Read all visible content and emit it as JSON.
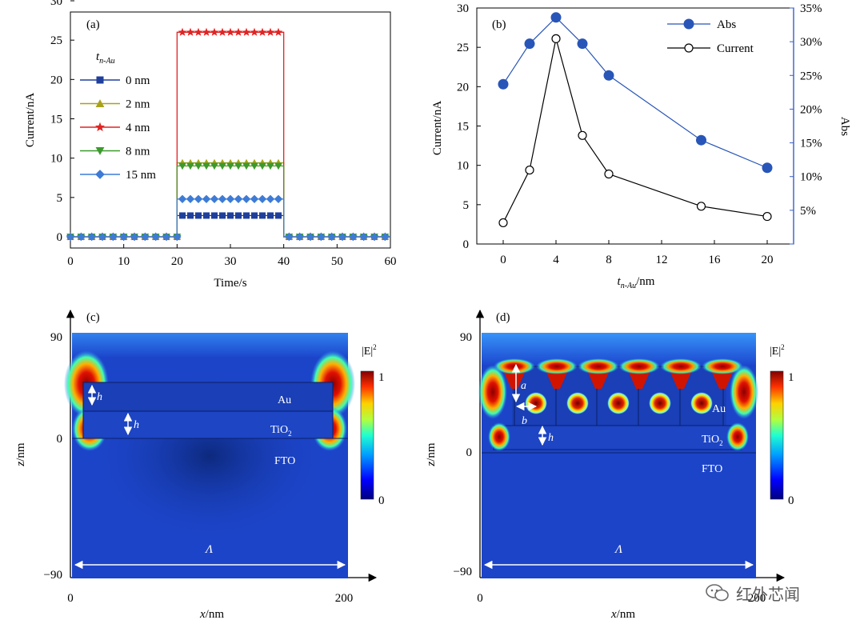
{
  "colors": {
    "s0": "#1f3f9c",
    "s2": "#a8a21a",
    "s4": "#e02424",
    "s8": "#3c9a2c",
    "s15": "#3d7bd6",
    "abs": "#2855b8",
    "current": "#000000",
    "axisRight": "#3a5fc8"
  },
  "chart_data": [
    {
      "panel": "(a)",
      "type": "line",
      "xlabel": "Time/s",
      "ylabel": "Current/nA",
      "xlim": [
        0,
        60
      ],
      "ylim": [
        0,
        30
      ],
      "xticks": [
        0,
        10,
        20,
        30,
        40,
        50,
        60
      ],
      "yticks": [
        0,
        5,
        10,
        15,
        20,
        25,
        30
      ],
      "legend_title_main": "t",
      "legend_title_sub": "n-Au",
      "on_interval": [
        20,
        40
      ],
      "series": [
        {
          "key": "s0",
          "name": "0 nm",
          "marker": "square",
          "on_value": 2.7
        },
        {
          "key": "s2",
          "name": "2 nm",
          "marker": "triangle-up",
          "on_value": 9.4
        },
        {
          "key": "s4",
          "name": "4 nm",
          "marker": "star",
          "on_value": 26
        },
        {
          "key": "s8",
          "name": "8 nm",
          "marker": "triangle-down",
          "on_value": 9.0
        },
        {
          "key": "s15",
          "name": "15 nm",
          "marker": "diamond",
          "on_value": 4.8
        }
      ]
    },
    {
      "panel": "(b)",
      "type": "line",
      "xlabel_main": "t",
      "xlabel_sub": "n-Au",
      "xlabel_tail": "/nm",
      "ylabel": "Current/nA",
      "y2label": "Abs",
      "xlim": [
        -2,
        22
      ],
      "ylim": [
        0,
        30
      ],
      "y2lim": [
        0,
        35
      ],
      "xticks": [
        0,
        4,
        8,
        12,
        16,
        20
      ],
      "yticks": [
        0,
        5,
        10,
        15,
        20,
        25,
        30
      ],
      "y2ticks": [
        "",
        "5%",
        "10%",
        "15%",
        "20%",
        "25%",
        "30%",
        "35%"
      ],
      "x": [
        0,
        2,
        4,
        6,
        8,
        15,
        20
      ],
      "series": [
        {
          "key": "abs",
          "name": "Abs",
          "axis": "right",
          "values": [
            23.7,
            29.7,
            33.6,
            29.7,
            25.0,
            15.4,
            11.3
          ]
        },
        {
          "key": "current",
          "name": "Current",
          "axis": "left",
          "values": [
            2.7,
            9.4,
            26.1,
            13.8,
            8.9,
            4.8,
            3.5
          ]
        }
      ]
    },
    {
      "panel": "(c)",
      "type": "heatmap",
      "xlabel_main": "x",
      "xlabel_tail": "/nm",
      "ylabel_main": "z",
      "ylabel_tail": "/nm",
      "xticks": [
        "0",
        "200"
      ],
      "yticks": [
        "90",
        "0",
        "−90"
      ],
      "colorbar_title": "|E|",
      "colorbar_sup": "2",
      "colorbar_range": [
        "0",
        "1"
      ],
      "layers": [
        "Au",
        "TiO",
        "FTO"
      ],
      "tio_sub": "2",
      "dims": [
        "h",
        "h"
      ],
      "period": "Λ"
    },
    {
      "panel": "(d)",
      "type": "heatmap",
      "xlabel_main": "x",
      "xlabel_tail": "/nm",
      "ylabel_main": "z",
      "ylabel_tail": "/nm",
      "xticks": [
        "0",
        "200"
      ],
      "yticks": [
        "90",
        "0",
        "−90"
      ],
      "colorbar_title": "|E|",
      "colorbar_sup": "2",
      "colorbar_range": [
        "0",
        "1"
      ],
      "layers": [
        "Au",
        "TiO",
        "FTO"
      ],
      "tio_sub": "2",
      "dims": [
        "a",
        "b",
        "h"
      ],
      "period": "Λ"
    }
  ],
  "watermark": {
    "text": "红外芯闻",
    "icon": "wechat-icon"
  }
}
